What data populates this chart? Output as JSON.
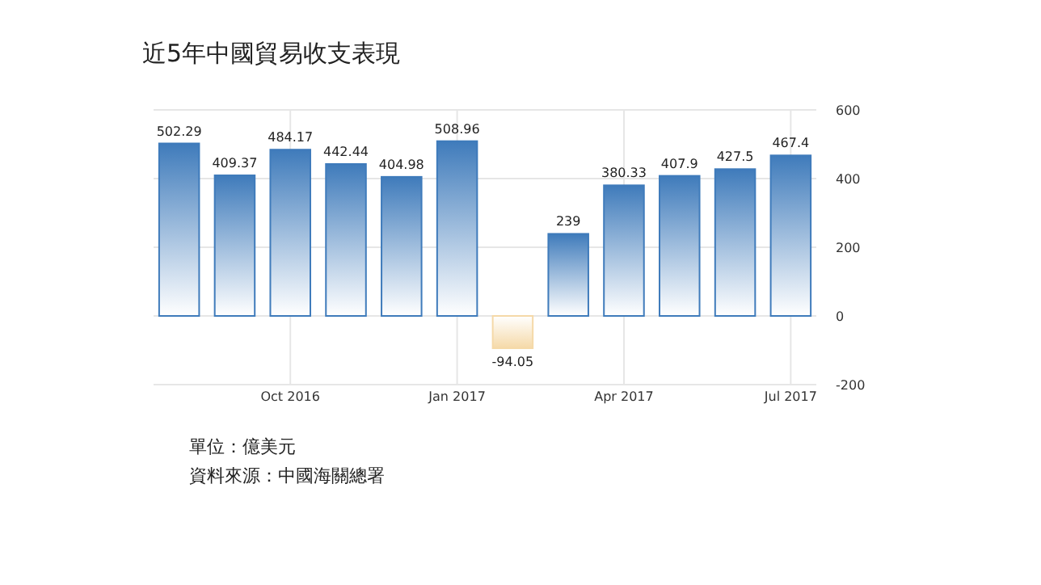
{
  "chart_data": {
    "type": "bar",
    "title": "近5年中國貿易收支表現",
    "categories": [
      null,
      null,
      "Oct 2016",
      null,
      null,
      "Jan 2017",
      null,
      null,
      "Apr 2017",
      null,
      null,
      "Jul 2017"
    ],
    "values": [
      502.29,
      409.37,
      484.17,
      442.44,
      404.98,
      508.96,
      -94.05,
      239,
      380.33,
      407.9,
      427.5,
      467.4
    ],
    "colors": [
      "#3f7bbb",
      "#3f7bbb",
      "#3f7bbb",
      "#3f7bbb",
      "#3f7bbb",
      "#3f7bbb",
      "#f5d9a8",
      "#3f7bbb",
      "#3f7bbb",
      "#3f7bbb",
      "#3f7bbb",
      "#3f7bbb"
    ],
    "ylim": [
      -200,
      600
    ],
    "yticks": [
      -200,
      0,
      200,
      400,
      600
    ],
    "grid": true,
    "data_labels": true,
    "annotations": [
      "單位：億美元",
      "資料來源：中國海關總署"
    ]
  }
}
